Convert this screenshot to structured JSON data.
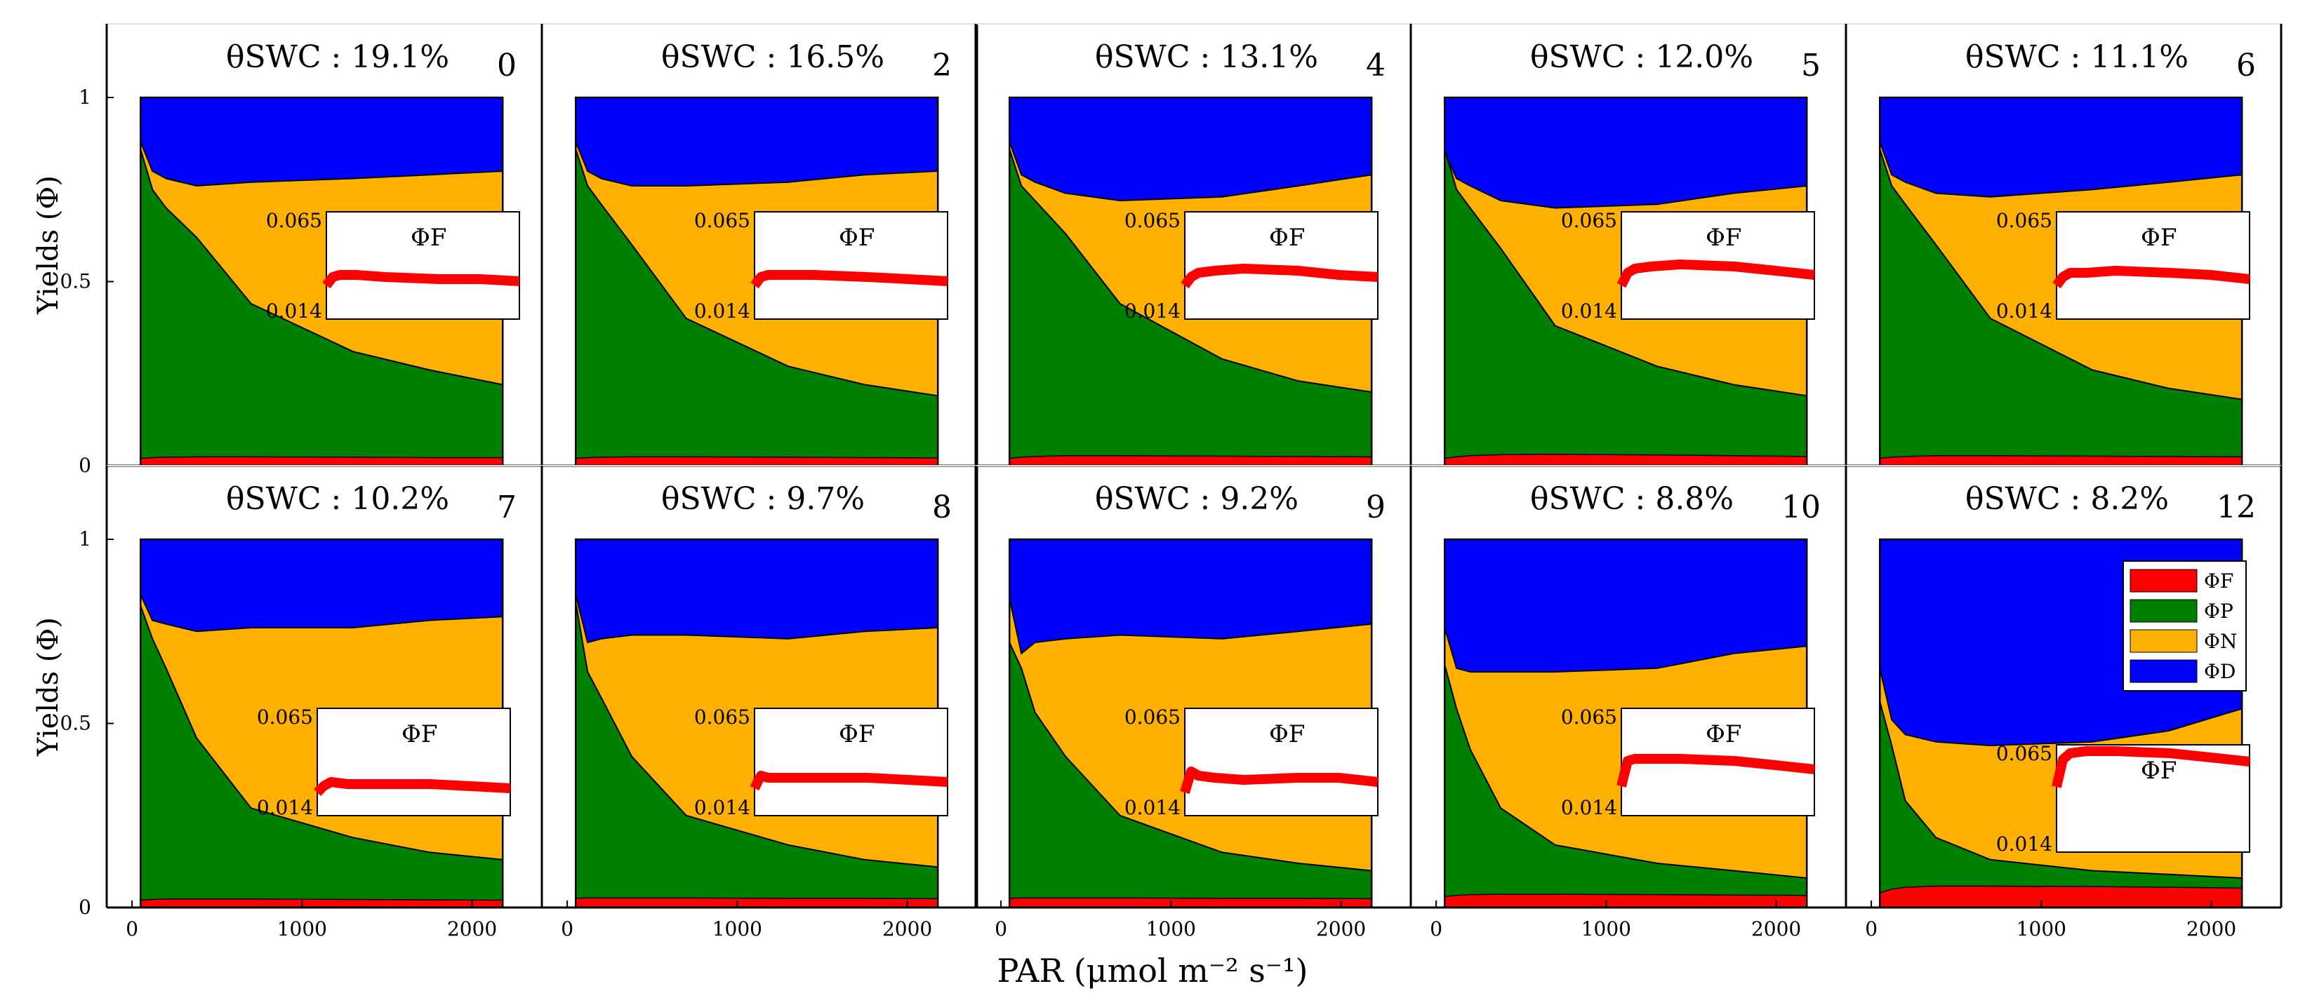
{
  "chart_data": {
    "type": "area",
    "layout": "2x5 small multiples, stacked area",
    "ylabel": "Yields (Φ)",
    "xlabel": "PAR (μmol m⁻² s⁻¹)",
    "ylim": [
      0,
      1.2
    ],
    "xlim": [
      -50,
      2270
    ],
    "yticks": [
      "0",
      "0.5",
      "1"
    ],
    "xticks": [
      "0",
      "1000",
      "2000"
    ],
    "x": [
      50,
      120,
      200,
      380,
      700,
      1300,
      1750,
      2180
    ],
    "legend": {
      "position": "inside bottom-right panel, upper-right",
      "entries": [
        {
          "key": "PhiF",
          "label": "ΦF",
          "color": "#ff0000"
        },
        {
          "key": "PhiP",
          "label": "ΦP",
          "color": "#008000"
        },
        {
          "key": "PhiN",
          "label": "ΦN",
          "color": "#ffb000"
        },
        {
          "key": "PhiD",
          "label": "ΦD",
          "color": "#0000ff"
        }
      ]
    },
    "inset": {
      "title": "ΦF",
      "ymax_label": "0.065",
      "ymin_label": "0.014"
    },
    "panels": [
      {
        "swc": "θSWC : 19.1%",
        "day": "0",
        "PhiF": [
          0.02,
          0.022,
          0.023,
          0.024,
          0.024,
          0.023,
          0.022,
          0.022
        ],
        "PhiP": [
          0.86,
          0.75,
          0.7,
          0.62,
          0.44,
          0.31,
          0.26,
          0.22
        ],
        "PhiN": [
          0.88,
          0.8,
          0.78,
          0.76,
          0.77,
          0.78,
          0.79,
          0.8
        ],
        "inset_y": [
          0.03,
          0.034,
          0.035,
          0.035,
          0.034,
          0.033,
          0.033,
          0.032
        ]
      },
      {
        "swc": "θSWC : 16.5%",
        "day": "2",
        "PhiF": [
          0.02,
          0.022,
          0.023,
          0.024,
          0.024,
          0.023,
          0.022,
          0.021
        ],
        "PhiP": [
          0.86,
          0.76,
          0.71,
          0.6,
          0.4,
          0.27,
          0.22,
          0.19
        ],
        "PhiN": [
          0.88,
          0.8,
          0.78,
          0.76,
          0.76,
          0.77,
          0.79,
          0.8
        ],
        "inset_y": [
          0.03,
          0.034,
          0.035,
          0.035,
          0.035,
          0.034,
          0.033,
          0.032
        ]
      },
      {
        "swc": "θSWC : 13.1%",
        "day": "4",
        "PhiF": [
          0.02,
          0.023,
          0.025,
          0.027,
          0.027,
          0.026,
          0.025,
          0.024
        ],
        "PhiP": [
          0.86,
          0.76,
          0.72,
          0.63,
          0.44,
          0.29,
          0.23,
          0.2
        ],
        "PhiN": [
          0.88,
          0.79,
          0.77,
          0.74,
          0.72,
          0.73,
          0.76,
          0.79
        ],
        "inset_y": [
          0.03,
          0.034,
          0.036,
          0.037,
          0.038,
          0.037,
          0.035,
          0.034
        ]
      },
      {
        "swc": "θSWC : 12.0%",
        "day": "5",
        "PhiF": [
          0.02,
          0.024,
          0.027,
          0.03,
          0.031,
          0.029,
          0.027,
          0.025
        ],
        "PhiP": [
          0.86,
          0.75,
          0.7,
          0.59,
          0.38,
          0.27,
          0.22,
          0.19
        ],
        "PhiN": [
          0.85,
          0.78,
          0.76,
          0.72,
          0.7,
          0.71,
          0.74,
          0.76
        ],
        "inset_y": [
          0.03,
          0.036,
          0.038,
          0.039,
          0.04,
          0.039,
          0.037,
          0.035
        ]
      },
      {
        "swc": "θSWC : 11.1%",
        "day": "6",
        "PhiF": [
          0.02,
          0.023,
          0.025,
          0.027,
          0.027,
          0.026,
          0.025,
          0.024
        ],
        "PhiP": [
          0.86,
          0.76,
          0.71,
          0.6,
          0.4,
          0.26,
          0.21,
          0.18
        ],
        "PhiN": [
          0.88,
          0.79,
          0.77,
          0.74,
          0.73,
          0.75,
          0.77,
          0.79
        ],
        "inset_y": [
          0.03,
          0.034,
          0.036,
          0.036,
          0.037,
          0.036,
          0.035,
          0.033
        ]
      },
      {
        "swc": "θSWC : 10.2%",
        "day": "7",
        "PhiF": [
          0.02,
          0.022,
          0.023,
          0.023,
          0.023,
          0.022,
          0.021,
          0.02
        ],
        "PhiP": [
          0.82,
          0.73,
          0.65,
          0.46,
          0.27,
          0.19,
          0.15,
          0.13
        ],
        "PhiN": [
          0.85,
          0.78,
          0.77,
          0.75,
          0.76,
          0.76,
          0.78,
          0.79
        ],
        "inset_y": [
          0.025,
          0.028,
          0.03,
          0.029,
          0.029,
          0.029,
          0.028,
          0.027
        ]
      },
      {
        "swc": "θSWC : 9.7%",
        "day": "8",
        "PhiF": [
          0.025,
          0.026,
          0.026,
          0.026,
          0.026,
          0.025,
          0.025,
          0.024
        ],
        "PhiP": [
          0.83,
          0.64,
          0.57,
          0.41,
          0.25,
          0.17,
          0.13,
          0.11
        ],
        "PhiN": [
          0.85,
          0.72,
          0.73,
          0.74,
          0.74,
          0.73,
          0.75,
          0.76
        ],
        "inset_y": [
          0.027,
          0.033,
          0.032,
          0.032,
          0.032,
          0.032,
          0.031,
          0.03
        ]
      },
      {
        "swc": "θSWC : 9.2%",
        "day": "9",
        "PhiF": [
          0.025,
          0.026,
          0.026,
          0.026,
          0.026,
          0.025,
          0.025,
          0.024
        ],
        "PhiP": [
          0.72,
          0.65,
          0.53,
          0.41,
          0.25,
          0.15,
          0.12,
          0.1
        ],
        "PhiN": [
          0.84,
          0.69,
          0.72,
          0.73,
          0.74,
          0.73,
          0.75,
          0.77
        ],
        "inset_y": [
          0.025,
          0.035,
          0.033,
          0.032,
          0.031,
          0.032,
          0.032,
          0.03
        ]
      },
      {
        "swc": "θSWC : 8.8%",
        "day": "10",
        "PhiF": [
          0.03,
          0.033,
          0.035,
          0.036,
          0.036,
          0.035,
          0.034,
          0.033
        ],
        "PhiP": [
          0.66,
          0.54,
          0.43,
          0.27,
          0.17,
          0.12,
          0.1,
          0.08
        ],
        "PhiN": [
          0.76,
          0.65,
          0.64,
          0.64,
          0.64,
          0.65,
          0.69,
          0.71
        ],
        "inset_y": [
          0.028,
          0.04,
          0.041,
          0.041,
          0.041,
          0.04,
          0.038,
          0.036
        ]
      },
      {
        "swc": "θSWC : 8.2%",
        "day": "12",
        "PhiF": [
          0.04,
          0.05,
          0.055,
          0.058,
          0.058,
          0.057,
          0.055,
          0.053
        ],
        "PhiP": [
          0.56,
          0.44,
          0.29,
          0.19,
          0.13,
          0.1,
          0.09,
          0.08
        ],
        "PhiN": [
          0.65,
          0.51,
          0.47,
          0.45,
          0.44,
          0.45,
          0.48,
          0.54
        ],
        "inset_y": [
          0.045,
          0.058,
          0.061,
          0.062,
          0.062,
          0.061,
          0.059,
          0.057
        ]
      }
    ]
  }
}
